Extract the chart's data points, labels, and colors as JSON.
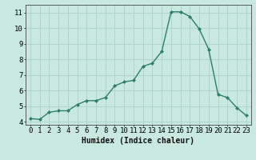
{
  "x": [
    0,
    1,
    2,
    3,
    4,
    5,
    6,
    7,
    8,
    9,
    10,
    11,
    12,
    13,
    14,
    15,
    16,
    17,
    18,
    19,
    20,
    21,
    22,
    23
  ],
  "y": [
    4.2,
    4.15,
    4.6,
    4.7,
    4.7,
    5.1,
    5.35,
    5.35,
    5.55,
    6.3,
    6.55,
    6.65,
    7.55,
    7.75,
    8.5,
    11.05,
    11.05,
    10.75,
    9.95,
    8.65,
    5.75,
    5.55,
    4.9,
    4.4
  ],
  "line_color": "#2d7d6e",
  "marker": "D",
  "marker_size": 2.2,
  "bg_color": "#c8e8e0",
  "grid_color": "#b0d4cc",
  "xlabel": "Humidex (Indice chaleur)",
  "xlim": [
    -0.5,
    23.5
  ],
  "ylim": [
    3.8,
    11.5
  ],
  "xticks": [
    0,
    1,
    2,
    3,
    4,
    5,
    6,
    7,
    8,
    9,
    10,
    11,
    12,
    13,
    14,
    15,
    16,
    17,
    18,
    19,
    20,
    21,
    22,
    23
  ],
  "yticks": [
    4,
    5,
    6,
    7,
    8,
    9,
    10,
    11
  ],
  "xlabel_fontsize": 7,
  "tick_fontsize": 6.5,
  "line_width": 1.0
}
